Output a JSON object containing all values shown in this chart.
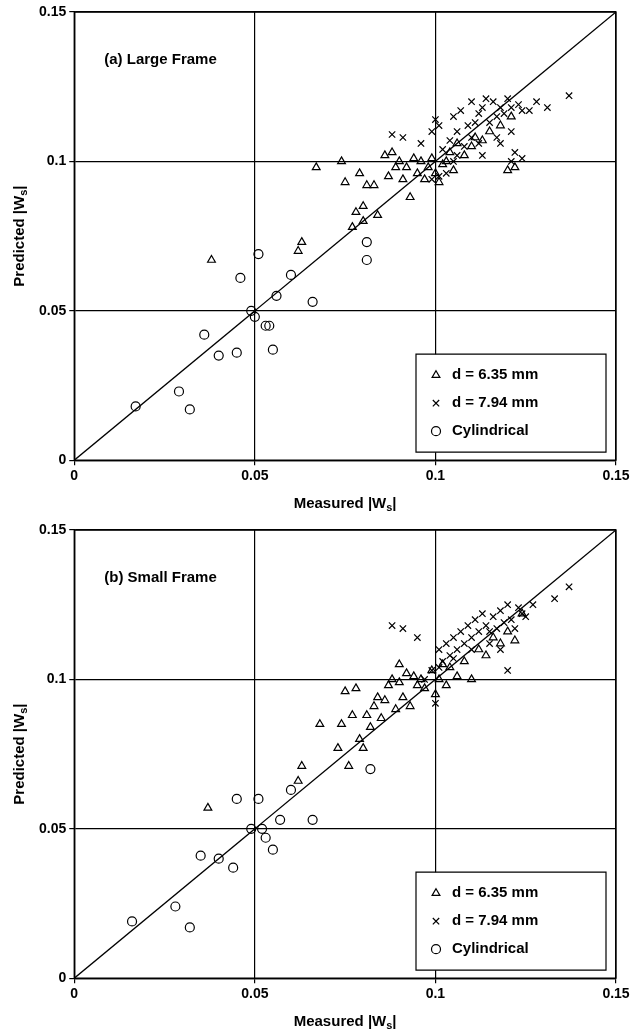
{
  "chart_data": [
    {
      "type": "scatter",
      "title": "(a) Large Frame",
      "xlabel": "Measured |W$_{s}$|",
      "ylabel": "Predicted |W$_{s}$|",
      "xlim": [
        0,
        0.15
      ],
      "ylim": [
        0,
        0.15
      ],
      "xticks": [
        0,
        0.05,
        0.1,
        0.15
      ],
      "yticks": [
        0,
        0.05,
        0.1,
        0.15
      ],
      "grid": true,
      "legend": "bottom right",
      "series": [
        {
          "name": "d = 6.35 mm",
          "color": "#000000",
          "marker": "triangle",
          "x": [
            0.038,
            0.062,
            0.063,
            0.067,
            0.074,
            0.075,
            0.077,
            0.078,
            0.079,
            0.08,
            0.08,
            0.081,
            0.083,
            0.084,
            0.086,
            0.087,
            0.088,
            0.089,
            0.09,
            0.091,
            0.092,
            0.093,
            0.094,
            0.095,
            0.096,
            0.097,
            0.098,
            0.099,
            0.1,
            0.101,
            0.102,
            0.103,
            0.104,
            0.105,
            0.106,
            0.108,
            0.11,
            0.111,
            0.113,
            0.115,
            0.118,
            0.12,
            0.122,
            0.121
          ],
          "values": [
            0.067,
            0.07,
            0.073,
            0.098,
            0.1,
            0.093,
            0.078,
            0.083,
            0.096,
            0.08,
            0.085,
            0.092,
            0.092,
            0.082,
            0.102,
            0.095,
            0.103,
            0.098,
            0.1,
            0.094,
            0.098,
            0.088,
            0.101,
            0.096,
            0.1,
            0.094,
            0.098,
            0.101,
            0.096,
            0.093,
            0.099,
            0.1,
            0.103,
            0.097,
            0.106,
            0.102,
            0.105,
            0.108,
            0.107,
            0.11,
            0.112,
            0.097,
            0.098,
            0.115
          ]
        },
        {
          "name": "d = 7.94 mm",
          "color": "#000000",
          "marker": "cross",
          "x": [
            0.088,
            0.091,
            0.096,
            0.099,
            0.1,
            0.101,
            0.102,
            0.103,
            0.104,
            0.105,
            0.106,
            0.106,
            0.107,
            0.108,
            0.109,
            0.11,
            0.11,
            0.111,
            0.112,
            0.113,
            0.113,
            0.114,
            0.115,
            0.116,
            0.117,
            0.118,
            0.118,
            0.119,
            0.12,
            0.121,
            0.121,
            0.122,
            0.123,
            0.124,
            0.124,
            0.126,
            0.128,
            0.131,
            0.137,
            0.099,
            0.105,
            0.112,
            0.117,
            0.121,
            0.101
          ],
          "values": [
            0.109,
            0.108,
            0.106,
            0.11,
            0.114,
            0.112,
            0.104,
            0.096,
            0.107,
            0.115,
            0.11,
            0.102,
            0.117,
            0.105,
            0.112,
            0.12,
            0.108,
            0.113,
            0.116,
            0.118,
            0.102,
            0.121,
            0.113,
            0.12,
            0.115,
            0.106,
            0.118,
            0.116,
            0.121,
            0.11,
            0.118,
            0.103,
            0.119,
            0.101,
            0.117,
            0.117,
            0.12,
            0.118,
            0.122,
            0.094,
            0.1,
            0.106,
            0.108,
            0.1,
            0.095
          ]
        },
        {
          "name": "Cylindrical",
          "color": "#000000",
          "marker": "circle",
          "x": [
            0.017,
            0.029,
            0.032,
            0.036,
            0.04,
            0.045,
            0.046,
            0.049,
            0.05,
            0.051,
            0.053,
            0.054,
            0.055,
            0.056,
            0.06,
            0.066,
            0.081,
            0.081
          ],
          "values": [
            0.018,
            0.023,
            0.017,
            0.042,
            0.035,
            0.036,
            0.061,
            0.05,
            0.048,
            0.069,
            0.045,
            0.045,
            0.037,
            0.055,
            0.062,
            0.053,
            0.073,
            0.067
          ]
        },
        {
          "type": "line",
          "color": "#000000",
          "marker": "none",
          "x": [
            0,
            0.15
          ],
          "values": [
            0,
            0.15
          ]
        }
      ]
    },
    {
      "type": "scatter",
      "title": "(b) Small Frame",
      "xlabel": "Measured |W$_{s}$|",
      "ylabel": "Predicted |W$_{s}$|",
      "xlim": [
        0,
        0.15
      ],
      "ylim": [
        0,
        0.15
      ],
      "xticks": [
        0,
        0.05,
        0.1,
        0.15
      ],
      "yticks": [
        0,
        0.05,
        0.1,
        0.15
      ],
      "grid": true,
      "legend": "bottom right",
      "series": [
        {
          "name": "d = 6.35 mm",
          "color": "#000000",
          "marker": "triangle",
          "x": [
            0.037,
            0.062,
            0.063,
            0.068,
            0.073,
            0.074,
            0.075,
            0.076,
            0.077,
            0.078,
            0.079,
            0.08,
            0.081,
            0.082,
            0.083,
            0.084,
            0.085,
            0.086,
            0.087,
            0.088,
            0.089,
            0.09,
            0.09,
            0.091,
            0.092,
            0.093,
            0.094,
            0.095,
            0.096,
            0.097,
            0.099,
            0.1,
            0.101,
            0.102,
            0.103,
            0.104,
            0.106,
            0.108,
            0.11,
            0.112,
            0.114,
            0.116,
            0.118,
            0.12,
            0.122,
            0.124
          ],
          "values": [
            0.057,
            0.066,
            0.071,
            0.085,
            0.077,
            0.085,
            0.096,
            0.071,
            0.088,
            0.097,
            0.08,
            0.077,
            0.088,
            0.084,
            0.091,
            0.094,
            0.087,
            0.093,
            0.098,
            0.1,
            0.09,
            0.099,
            0.105,
            0.094,
            0.102,
            0.091,
            0.101,
            0.098,
            0.1,
            0.097,
            0.103,
            0.095,
            0.1,
            0.105,
            0.098,
            0.104,
            0.101,
            0.106,
            0.1,
            0.11,
            0.108,
            0.114,
            0.112,
            0.116,
            0.113,
            0.122
          ]
        },
        {
          "name": "d = 7.94 mm",
          "color": "#000000",
          "marker": "cross",
          "x": [
            0.088,
            0.091,
            0.095,
            0.097,
            0.099,
            0.1,
            0.101,
            0.102,
            0.103,
            0.104,
            0.105,
            0.106,
            0.107,
            0.108,
            0.109,
            0.11,
            0.111,
            0.112,
            0.113,
            0.114,
            0.115,
            0.116,
            0.117,
            0.118,
            0.119,
            0.12,
            0.12,
            0.121,
            0.122,
            0.123,
            0.124,
            0.125,
            0.127,
            0.133,
            0.137,
            0.101,
            0.105,
            0.11,
            0.115,
            0.118
          ],
          "values": [
            0.118,
            0.117,
            0.114,
            0.1,
            0.103,
            0.092,
            0.11,
            0.106,
            0.112,
            0.108,
            0.114,
            0.11,
            0.116,
            0.112,
            0.118,
            0.114,
            0.12,
            0.116,
            0.122,
            0.118,
            0.112,
            0.121,
            0.117,
            0.123,
            0.119,
            0.103,
            0.125,
            0.12,
            0.117,
            0.124,
            0.122,
            0.121,
            0.125,
            0.127,
            0.131,
            0.104,
            0.107,
            0.11,
            0.116,
            0.11
          ]
        },
        {
          "name": "Cylindrical",
          "color": "#000000",
          "marker": "circle",
          "x": [
            0.016,
            0.028,
            0.032,
            0.035,
            0.04,
            0.044,
            0.045,
            0.051,
            0.049,
            0.052,
            0.053,
            0.055,
            0.057,
            0.06,
            0.066,
            0.082
          ],
          "values": [
            0.019,
            0.024,
            0.017,
            0.041,
            0.04,
            0.037,
            0.06,
            0.06,
            0.05,
            0.05,
            0.047,
            0.043,
            0.053,
            0.063,
            0.053,
            0.07
          ]
        },
        {
          "type": "line",
          "color": "#000000",
          "marker": "none",
          "x": [
            0,
            0.15
          ],
          "values": [
            0,
            0.15
          ]
        }
      ]
    }
  ]
}
